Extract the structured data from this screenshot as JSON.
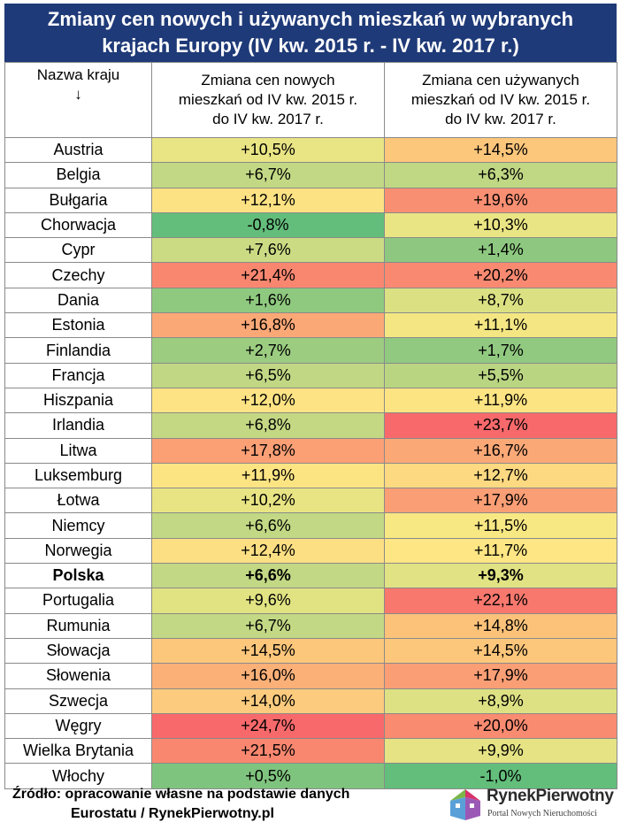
{
  "title": {
    "line1": "Zmiany cen nowych i używanych mieszkań w wybranych",
    "line2": "krajach Europy (IV kw. 2015 r. - IV kw. 2017 r.)"
  },
  "headers": {
    "country": "Nazwa kraju",
    "country_arrow": "↓",
    "new": [
      "Zmiana cen nowych",
      "mieszkań od IV kw. 2015 r.",
      "do IV kw. 2017 r."
    ],
    "used": [
      "Zmiana cen używanych",
      "mieszkań od IV kw. 2015 r.",
      "do IV kw. 2017 r."
    ]
  },
  "rows": [
    {
      "country": "Austria",
      "new": "+10,5%",
      "used": "+14,5%",
      "new_color": "#e9e484",
      "used_color": "#fcc67b"
    },
    {
      "country": "Belgia",
      "new": "+6,7%",
      "used": "+6,3%",
      "new_color": "#c3d884",
      "used_color": "#c0d783"
    },
    {
      "country": "Bułgaria",
      "new": "+12,1%",
      "used": "+19,6%",
      "new_color": "#fde284",
      "used_color": "#f98f72"
    },
    {
      "country": "Chorwacja",
      "new": "-0,8%",
      "used": "+10,3%",
      "new_color": "#63be7b",
      "used_color": "#eae584"
    },
    {
      "country": "Cypr",
      "new": "+7,6%",
      "used": "+1,4%",
      "new_color": "#cbdb84",
      "used_color": "#8ec880"
    },
    {
      "country": "Czechy",
      "new": "+21,4%",
      "used": "+20,2%",
      "new_color": "#f98770",
      "used_color": "#f98a71"
    },
    {
      "country": "Dania",
      "new": "+1,6%",
      "used": "+8,7%",
      "new_color": "#8fc97f",
      "used_color": "#dbe083"
    },
    {
      "country": "Estonia",
      "new": "+16,8%",
      "used": "+11,1%",
      "new_color": "#fba877",
      "used_color": "#f4e783"
    },
    {
      "country": "Finlandia",
      "new": "+2,7%",
      "used": "+1,7%",
      "new_color": "#9bcc80",
      "used_color": "#91c980"
    },
    {
      "country": "Francja",
      "new": "+6,5%",
      "used": "+5,5%",
      "new_color": "#c1d784",
      "used_color": "#b9d582"
    },
    {
      "country": "Hiszpania",
      "new": "+12,0%",
      "used": "+11,9%",
      "new_color": "#fde384",
      "used_color": "#fde483"
    },
    {
      "country": "Irlandia",
      "new": "+6,8%",
      "used": "+23,7%",
      "new_color": "#c4d884",
      "used_color": "#f8696b"
    },
    {
      "country": "Litwa",
      "new": "+17,8%",
      "used": "+16,7%",
      "new_color": "#fb9f75",
      "used_color": "#fba877"
    },
    {
      "country": "Luksemburg",
      "new": "+11,9%",
      "used": "+12,7%",
      "new_color": "#fde483",
      "used_color": "#fdd981"
    },
    {
      "country": "Łotwa",
      "new": "+10,2%",
      "used": "+17,9%",
      "new_color": "#e8e484",
      "used_color": "#fa9e75"
    },
    {
      "country": "Niemcy",
      "new": "+6,6%",
      "used": "+11,5%",
      "new_color": "#c2d884",
      "used_color": "#f8e884"
    },
    {
      "country": "Norwegia",
      "new": "+12,4%",
      "used": "+11,7%",
      "new_color": "#fddf83",
      "used_color": "#fde683"
    },
    {
      "country": "Polska",
      "new": "+6,6%",
      "used": "+9,3%",
      "new_color": "#c2d884",
      "used_color": "#e1e283",
      "bold": true
    },
    {
      "country": "Portugalia",
      "new": "+9,6%",
      "used": "+22,1%",
      "new_color": "#e1e383",
      "used_color": "#f8786e"
    },
    {
      "country": "Rumunia",
      "new": "+6,7%",
      "used": "+14,8%",
      "new_color": "#c3d884",
      "used_color": "#fcc27a"
    },
    {
      "country": "Słowacja",
      "new": "+14,5%",
      "used": "+14,5%",
      "new_color": "#fcc67b",
      "used_color": "#fcc67b"
    },
    {
      "country": "Słowenia",
      "new": "+16,0%",
      "used": "+17,9%",
      "new_color": "#fbb078",
      "used_color": "#fa9e75"
    },
    {
      "country": "Szwecja",
      "new": "+14,0%",
      "used": "+8,9%",
      "new_color": "#fccb7d",
      "used_color": "#dde183"
    },
    {
      "country": "Węgry",
      "new": "+24,7%",
      "used": "+20,0%",
      "new_color": "#f8696b",
      "used_color": "#f98b71"
    },
    {
      "country": "Wielka Brytania",
      "new": "+21,5%",
      "used": "+9,9%",
      "new_color": "#f98770",
      "used_color": "#e5e384"
    },
    {
      "country": "Włochy",
      "new": "+0,5%",
      "used": "-1,0%",
      "new_color": "#7fc47e",
      "used_color": "#63be7b"
    }
  ],
  "source": {
    "line1": "Źródło: opracowanie własne na podstawie danych",
    "line2": "Eurostatu / RynekPierwotny.pl"
  },
  "logo": {
    "name": "RynekPierwotny",
    "tagline": "Portal Nowych Nieruchomości"
  }
}
